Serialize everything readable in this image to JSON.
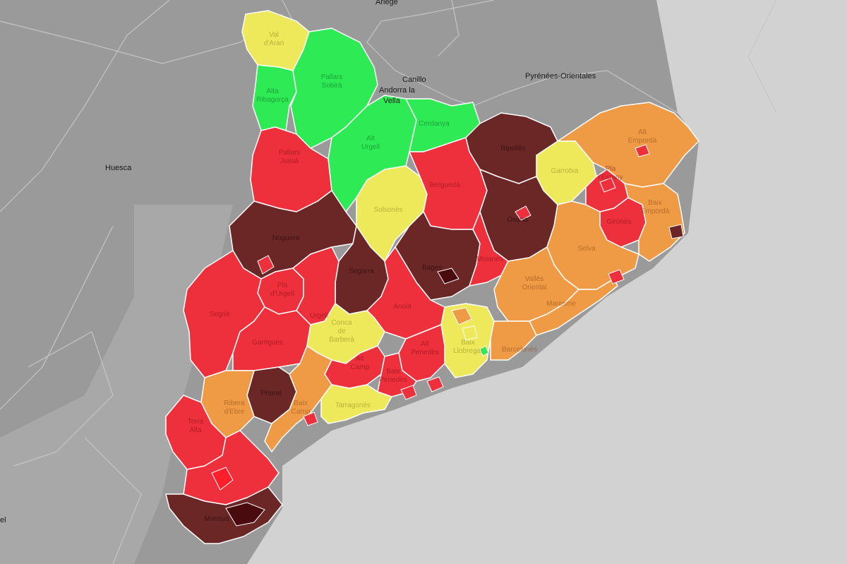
{
  "colors": {
    "region_background": "#9a9a9a",
    "sea": "#d2d2d2",
    "green": "#2eea55",
    "yellow": "#ede95a",
    "orange": "#ef9a45",
    "red": "#ee2f3c",
    "dark": "#6b2626",
    "darkest": "#4a0b0f"
  },
  "external_labels": {
    "ariege": "Ariège",
    "canillo": "Canillo",
    "andorra_line1": "Andorra la",
    "andorra_line2": "Vella",
    "pyrenees_orientales": "Pyrénées-Orientales",
    "huesca": "Huesca",
    "edge_el": "el"
  },
  "comarques": [
    {
      "id": "val-d-aran",
      "lines": [
        "Val",
        "d'Aran"
      ],
      "level": "yellow"
    },
    {
      "id": "pallars-sobira",
      "lines": [
        "Pallars",
        "Sobirà"
      ],
      "level": "green"
    },
    {
      "id": "alta-ribagorca",
      "lines": [
        "Alta",
        "Ribagorça"
      ],
      "level": "green"
    },
    {
      "id": "alt-urgell",
      "lines": [
        "Alt",
        "Urgell"
      ],
      "level": "green"
    },
    {
      "id": "cerdanya",
      "lines": [
        "Cerdanya"
      ],
      "level": "green"
    },
    {
      "id": "pallars-jussa",
      "lines": [
        "Pallars",
        "Jussà"
      ],
      "level": "red"
    },
    {
      "id": "ripolles",
      "lines": [
        "Ripollès"
      ],
      "level": "dark"
    },
    {
      "id": "alt-emporda",
      "lines": [
        "Alt",
        "Empordà"
      ],
      "level": "orange"
    },
    {
      "id": "garrotxa",
      "lines": [
        "Garrotxa"
      ],
      "level": "yellow"
    },
    {
      "id": "solsones",
      "lines": [
        "Solsonès"
      ],
      "level": "yellow"
    },
    {
      "id": "bergueda",
      "lines": [
        "Berguedà"
      ],
      "level": "red"
    },
    {
      "id": "pla-de-l-estany",
      "lines": [
        "Pla",
        "l'Estany"
      ],
      "level": "red"
    },
    {
      "id": "girones",
      "lines": [
        "Gironès"
      ],
      "level": "red"
    },
    {
      "id": "baix-emporda",
      "lines": [
        "Baix",
        "Empordà"
      ],
      "level": "orange"
    },
    {
      "id": "osona",
      "lines": [
        "Osona"
      ],
      "level": "dark"
    },
    {
      "id": "noguera",
      "lines": [
        "Noguera"
      ],
      "level": "dark"
    },
    {
      "id": "selva",
      "lines": [
        "Selva"
      ],
      "level": "orange"
    },
    {
      "id": "segarra",
      "lines": [
        "Segarra"
      ],
      "level": "dark"
    },
    {
      "id": "bages",
      "lines": [
        "Bages"
      ],
      "level": "dark"
    },
    {
      "id": "moianes",
      "lines": [
        "Moianès"
      ],
      "level": "red"
    },
    {
      "id": "pla-d-urgell",
      "lines": [
        "Pla",
        "d'Urgell"
      ],
      "level": "red"
    },
    {
      "id": "urgell",
      "lines": [
        "Urgell"
      ],
      "level": "red"
    },
    {
      "id": "segria",
      "lines": [
        "Segrià"
      ],
      "level": "red"
    },
    {
      "id": "anoia",
      "lines": [
        "Anoia"
      ],
      "level": "red"
    },
    {
      "id": "valles-oriental",
      "lines": [
        "Vallès",
        "Oriental"
      ],
      "level": "orange"
    },
    {
      "id": "maresme",
      "lines": [
        "Maresme"
      ],
      "level": "orange"
    },
    {
      "id": "garrigues",
      "lines": [
        "Garrigues"
      ],
      "level": "red"
    },
    {
      "id": "conca-de-barbera",
      "lines": [
        "Conca",
        "de",
        "Barberà"
      ],
      "level": "yellow"
    },
    {
      "id": "barcelones",
      "lines": [
        "Barcelonès"
      ],
      "level": "orange"
    },
    {
      "id": "baix-llobregat",
      "lines": [
        "Baix",
        "Llobregat"
      ],
      "level": "yellow"
    },
    {
      "id": "alt-penedes",
      "lines": [
        "Alt",
        "Penedès"
      ],
      "level": "red"
    },
    {
      "id": "alt-camp",
      "lines": [
        "Alt",
        "Camp"
      ],
      "level": "red"
    },
    {
      "id": "baix-penedes",
      "lines": [
        "Baix",
        "Penedès"
      ],
      "level": "red"
    },
    {
      "id": "priorat",
      "lines": [
        "Priorat"
      ],
      "level": "dark"
    },
    {
      "id": "ribera-d-ebre",
      "lines": [
        "Ribera",
        "d'Ebre"
      ],
      "level": "orange"
    },
    {
      "id": "baix-camp",
      "lines": [
        "Baix",
        "Camp"
      ],
      "level": "orange"
    },
    {
      "id": "tarragones",
      "lines": [
        "Tarragonès"
      ],
      "level": "yellow"
    },
    {
      "id": "terra-alta",
      "lines": [
        "Terra",
        "Alta"
      ],
      "level": "red"
    },
    {
      "id": "baix-ebre",
      "lines": [],
      "level": "red"
    },
    {
      "id": "montsia",
      "lines": [
        "Montsià"
      ],
      "level": "dark"
    }
  ]
}
